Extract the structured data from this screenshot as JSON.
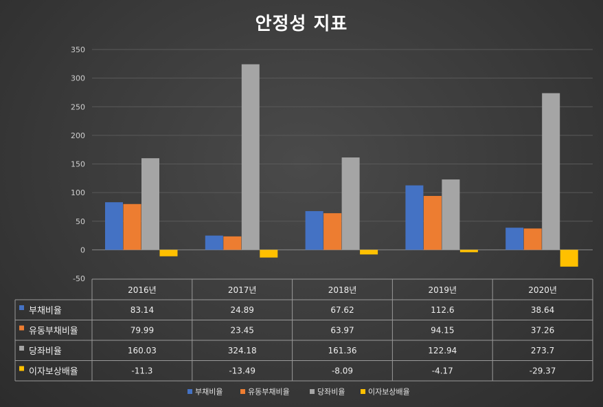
{
  "chart_data": {
    "type": "bar",
    "title": "안정성 지표",
    "categories": [
      "2016년",
      "2017년",
      "2018년",
      "2019년",
      "2020년"
    ],
    "series": [
      {
        "name": "부채비율",
        "values": [
          83.14,
          24.89,
          67.62,
          112.6,
          38.64
        ],
        "labels": [
          "83.14",
          "24.89",
          "67.62",
          "112.6",
          "38.64"
        ],
        "color": "#4472c4"
      },
      {
        "name": "유동부채비율",
        "values": [
          79.99,
          23.45,
          63.97,
          94.15,
          37.26
        ],
        "labels": [
          "79.99",
          "23.45",
          "63.97",
          "94.15",
          "37.26"
        ],
        "color": "#ed7d31"
      },
      {
        "name": "당좌비율",
        "values": [
          160.03,
          324.18,
          161.36,
          122.94,
          273.7
        ],
        "labels": [
          "160.03",
          "324.18",
          "161.36",
          "122.94",
          "273.7"
        ],
        "color": "#a5a5a5"
      },
      {
        "name": "이자보상배율",
        "values": [
          -11.3,
          -13.49,
          -8.09,
          -4.17,
          -29.37
        ],
        "labels": [
          "-11.3",
          "-13.49",
          "-8.09",
          "-4.17",
          "-29.37"
        ],
        "color": "#ffc000"
      }
    ],
    "ylim": [
      -50,
      350
    ],
    "yticks": [
      "-50",
      "0",
      "50",
      "100",
      "150",
      "200",
      "250",
      "300",
      "350"
    ],
    "grid": true,
    "legend": "bottom",
    "data_table": true
  }
}
